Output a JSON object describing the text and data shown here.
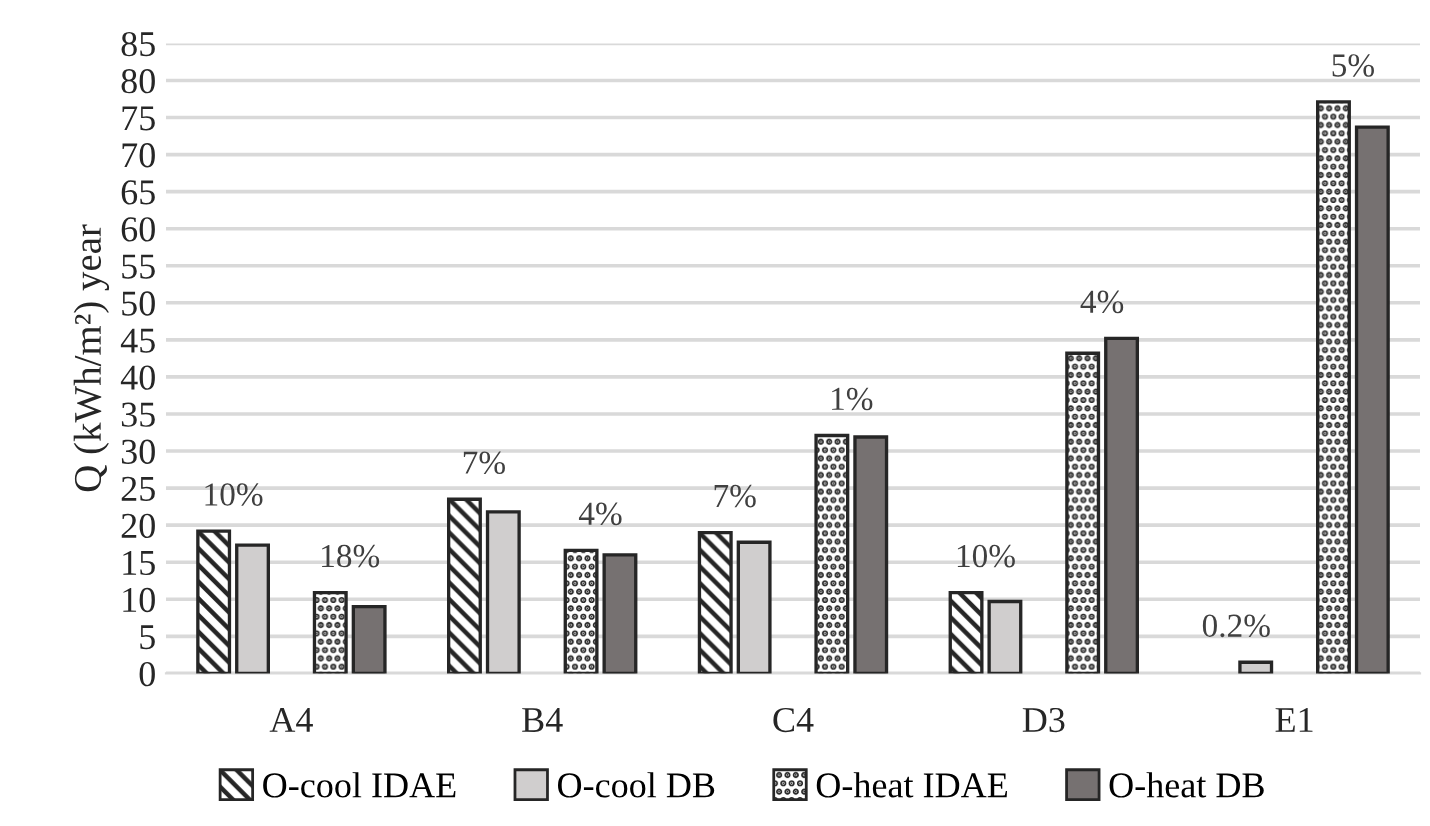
{
  "chart_data": {
    "type": "bar",
    "ylabel": "Q (kWh/m²) year",
    "categories": [
      "A4",
      "B4",
      "C4",
      "D3",
      "E1"
    ],
    "series": [
      {
        "name": "O-cool IDAE",
        "color": "#262626",
        "values": [
          19.2,
          23.5,
          19.0,
          10.9,
          null
        ]
      },
      {
        "name": "O-cool DB",
        "color": "#d0cece",
        "values": [
          17.3,
          21.8,
          17.7,
          9.7,
          1.5
        ]
      },
      {
        "name": "O-heat IDAE",
        "color": "#262626",
        "values": [
          10.9,
          16.6,
          32.1,
          43.2,
          77.1
        ]
      },
      {
        "name": "O-heat DB",
        "color": "#767171",
        "values": [
          9.0,
          16.0,
          31.9,
          45.2,
          73.7
        ]
      }
    ],
    "annotations": [
      "10%",
      "18%",
      "7%",
      "4%",
      "7%",
      "1%",
      "10%",
      "4%",
      "0.2%",
      "5%"
    ],
    "ylim": [
      0,
      85
    ],
    "yticks": [
      0,
      5,
      10,
      15,
      20,
      25,
      30,
      35,
      40,
      45,
      50,
      55,
      60,
      65,
      70,
      75,
      80,
      85
    ],
    "grid": "y",
    "legend": "bottom"
  }
}
